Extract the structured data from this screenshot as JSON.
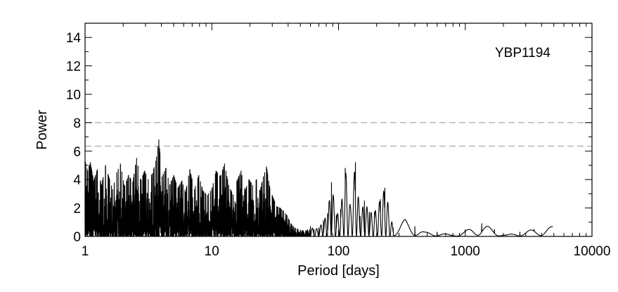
{
  "chart_data": {
    "type": "line",
    "title": "",
    "annotation": "YBP1194",
    "xlabel": "Period [days]",
    "ylabel": "Power",
    "x_scale": "log",
    "xlim": [
      1,
      10000
    ],
    "ylim": [
      0,
      15
    ],
    "x_ticks": [
      {
        "value": 1,
        "label": "1"
      },
      {
        "value": 10,
        "label": "10"
      },
      {
        "value": 100,
        "label": "100"
      },
      {
        "value": 1000,
        "label": "1000"
      },
      {
        "value": 10000,
        "label": "10000"
      }
    ],
    "y_ticks": [
      {
        "value": 0,
        "label": "0"
      },
      {
        "value": 2,
        "label": "2"
      },
      {
        "value": 4,
        "label": "4"
      },
      {
        "value": 6,
        "label": "6"
      },
      {
        "value": 8,
        "label": "8"
      },
      {
        "value": 10,
        "label": "10"
      },
      {
        "value": 12,
        "label": "12"
      },
      {
        "value": 14,
        "label": "14"
      }
    ],
    "reference_lines": [
      {
        "y": 8.0,
        "style": "dashed",
        "color": "#aaaaaa"
      },
      {
        "y": 6.35,
        "style": "dashed",
        "color": "#aaaaaa"
      }
    ],
    "line_color": "#000000",
    "series": [
      {
        "peaks": [
          [
            1.0,
            5.3
          ],
          [
            1.05,
            4.6
          ],
          [
            1.1,
            5.2
          ],
          [
            1.17,
            3.9
          ],
          [
            1.25,
            4.7
          ],
          [
            1.35,
            3.6
          ],
          [
            1.45,
            5.0
          ],
          [
            1.55,
            4.1
          ],
          [
            1.65,
            3.3
          ],
          [
            1.78,
            4.5
          ],
          [
            1.9,
            5.1
          ],
          [
            2.05,
            3.5
          ],
          [
            2.2,
            4.3
          ],
          [
            2.38,
            3.8
          ],
          [
            2.55,
            5.5
          ],
          [
            2.75,
            3.9
          ],
          [
            2.95,
            4.6
          ],
          [
            3.15,
            4.0
          ],
          [
            3.4,
            4.4
          ],
          [
            3.62,
            5.3
          ],
          [
            3.82,
            6.8
          ],
          [
            4.05,
            4.2
          ],
          [
            4.35,
            4.8
          ],
          [
            4.65,
            3.6
          ],
          [
            5.0,
            4.3
          ],
          [
            5.4,
            3.4
          ],
          [
            5.8,
            3.9
          ],
          [
            6.2,
            3.1
          ],
          [
            6.7,
            4.7
          ],
          [
            7.3,
            3.3
          ],
          [
            7.9,
            4.3
          ],
          [
            8.5,
            3.2
          ],
          [
            9.2,
            2.9
          ],
          [
            10.0,
            3.3
          ],
          [
            10.8,
            4.6
          ],
          [
            11.7,
            4.2
          ],
          [
            12.6,
            5.1
          ],
          [
            13.6,
            3.6
          ],
          [
            14.7,
            2.9
          ],
          [
            15.8,
            3.9
          ],
          [
            17.0,
            4.6
          ],
          [
            18.3,
            3.2
          ],
          [
            19.6,
            4.0
          ],
          [
            21.0,
            3.6
          ],
          [
            22.5,
            4.0
          ],
          [
            24.0,
            3.2
          ],
          [
            25.5,
            4.2
          ],
          [
            27.0,
            4.9
          ],
          [
            28.7,
            3.4
          ],
          [
            30.5,
            2.7
          ],
          [
            32.5,
            2.1
          ],
          [
            34.5,
            2.0
          ],
          [
            36.5,
            1.8
          ],
          [
            39.0,
            1.5
          ],
          [
            42.0,
            0.9
          ],
          [
            45.0,
            0.6
          ],
          [
            48.0,
            0.5
          ],
          [
            52.0,
            0.4
          ],
          [
            56.0,
            0.4
          ],
          [
            60.0,
            0.7
          ],
          [
            64.0,
            0.5
          ],
          [
            70.0,
            0.6
          ],
          [
            76.0,
            1.1
          ],
          [
            82.0,
            1.6
          ],
          [
            88.0,
            3.8
          ],
          [
            96.0,
            1.5
          ],
          [
            104.0,
            1.9
          ],
          [
            113.0,
            4.8
          ],
          [
            124.0,
            2.1
          ],
          [
            136.0,
            5.2
          ],
          [
            148.0,
            1.4
          ],
          [
            160.0,
            2.5
          ],
          [
            175.0,
            1.7
          ],
          [
            192.0,
            1.7
          ],
          [
            214.0,
            2.6
          ],
          [
            232.0,
            3.4
          ],
          [
            270.0,
            0.6
          ],
          [
            335.0,
            1.2
          ],
          [
            400.0,
            0.7
          ],
          [
            480.0,
            0.3
          ],
          [
            600.0,
            0.3
          ],
          [
            780.0,
            0.1
          ],
          [
            1000.0,
            0.4
          ],
          [
            1350.0,
            0.9
          ],
          [
            1700.0,
            0.5
          ],
          [
            2100.0,
            0.1
          ],
          [
            2700.0,
            0.3
          ],
          [
            3500.0,
            0.5
          ],
          [
            4900.0,
            0.7
          ]
        ]
      }
    ]
  }
}
